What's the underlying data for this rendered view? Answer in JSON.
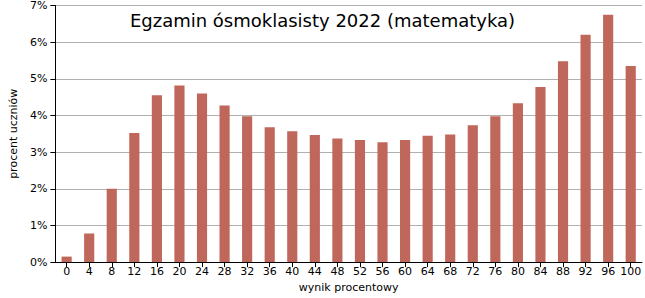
{
  "chart_data": {
    "type": "bar",
    "title": "Egzamin ósmoklasisty 2022 (matematyka)",
    "x_label": "wynik procentowy",
    "y_label": "procent uczniów",
    "categories": [
      "0",
      "4",
      "8",
      "12",
      "16",
      "20",
      "24",
      "28",
      "32",
      "36",
      "40",
      "44",
      "48",
      "52",
      "56",
      "60",
      "64",
      "68",
      "72",
      "76",
      "80",
      "84",
      "88",
      "92",
      "96",
      "100"
    ],
    "values": [
      0.15,
      0.78,
      2.0,
      3.52,
      4.55,
      4.82,
      4.6,
      4.27,
      3.98,
      3.68,
      3.57,
      3.47,
      3.37,
      3.33,
      3.27,
      3.33,
      3.45,
      3.48,
      3.73,
      3.98,
      4.33,
      4.78,
      5.48,
      6.2,
      6.75,
      5.35
    ],
    "color": "#c0675b",
    "ylim": [
      0,
      7
    ],
    "yticks": [
      {
        "value": 0,
        "label": "0%"
      },
      {
        "value": 1,
        "label": "1%"
      },
      {
        "value": 2,
        "label": "2%"
      },
      {
        "value": 3,
        "label": "3%"
      },
      {
        "value": 4,
        "label": "4%"
      },
      {
        "value": 5,
        "label": "5%"
      },
      {
        "value": 6,
        "label": "6%"
      },
      {
        "value": 7,
        "label": "7%"
      }
    ],
    "grid": true
  }
}
